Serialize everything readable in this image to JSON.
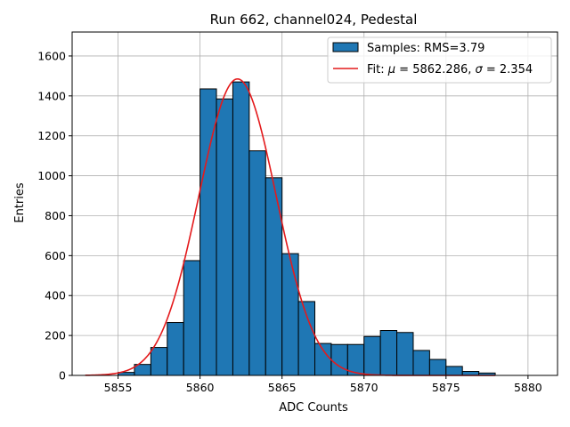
{
  "chart_data": {
    "type": "bar",
    "title": "Run 662, channel024, Pedestal",
    "xlabel": "ADC Counts",
    "ylabel": "Entries",
    "xlim": [
      5852.2,
      5881.8
    ],
    "ylim": [
      0,
      1720
    ],
    "x_ticks": [
      5855,
      5860,
      5865,
      5870,
      5875,
      5880
    ],
    "y_ticks": [
      0,
      200,
      400,
      600,
      800,
      1000,
      1200,
      1400,
      1600
    ],
    "grid": true,
    "legend_position": "top-right",
    "bar_color": "#1f77b4",
    "fit_color": "#e41a1c",
    "bin_width": 1,
    "bin_edges_start": 5855,
    "bins": [
      {
        "x": 5855,
        "count": 15
      },
      {
        "x": 5856,
        "count": 55
      },
      {
        "x": 5857,
        "count": 140
      },
      {
        "x": 5858,
        "count": 265
      },
      {
        "x": 5859,
        "count": 575
      },
      {
        "x": 5860,
        "count": 1435
      },
      {
        "x": 5861,
        "count": 1385
      },
      {
        "x": 5862,
        "count": 1470
      },
      {
        "x": 5863,
        "count": 1125
      },
      {
        "x": 5864,
        "count": 990
      },
      {
        "x": 5865,
        "count": 610
      },
      {
        "x": 5866,
        "count": 370
      },
      {
        "x": 5867,
        "count": 160
      },
      {
        "x": 5868,
        "count": 155
      },
      {
        "x": 5869,
        "count": 155
      },
      {
        "x": 5870,
        "count": 195
      },
      {
        "x": 5871,
        "count": 225
      },
      {
        "x": 5872,
        "count": 215
      },
      {
        "x": 5873,
        "count": 125
      },
      {
        "x": 5874,
        "count": 80
      },
      {
        "x": 5875,
        "count": 45
      },
      {
        "x": 5876,
        "count": 20
      },
      {
        "x": 5877,
        "count": 12
      }
    ],
    "fit": {
      "mu": 5862.286,
      "sigma": 2.354,
      "amplitude": 1485,
      "x_range": [
        5853,
        5878
      ]
    },
    "legend": [
      {
        "label": "Samples: RMS=3.79",
        "kind": "patch"
      },
      {
        "label_prefix": "Fit: ",
        "mu_symbol": "μ",
        "mu_text": " = 5862.286, ",
        "sigma_symbol": "σ",
        "sigma_text": " = 2.354",
        "kind": "line"
      }
    ]
  }
}
